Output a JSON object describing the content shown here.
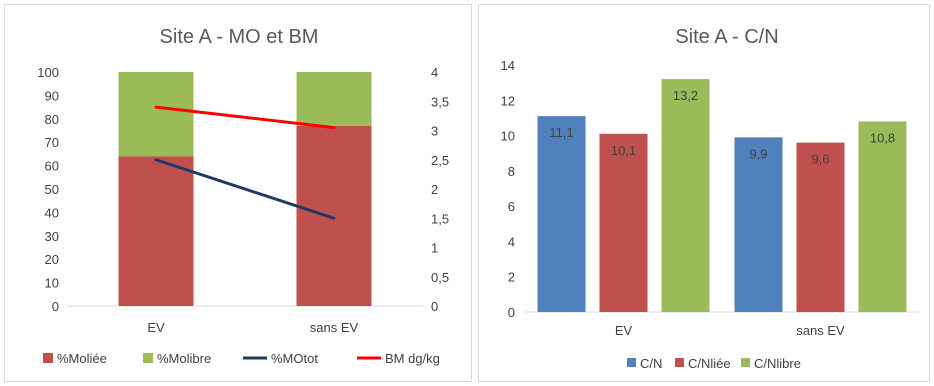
{
  "chart_data": [
    {
      "type": "bar",
      "subtype": "stacked bar + line (secondary axis)",
      "title": "Site A -  MO et BM",
      "categories": [
        "EV",
        "sans EV"
      ],
      "ylim": [
        0,
        100
      ],
      "yticks": [
        0,
        10,
        20,
        30,
        40,
        50,
        60,
        70,
        80,
        90,
        100
      ],
      "y2lim": [
        0,
        4
      ],
      "y2ticks": [
        "0",
        "0,5",
        "1",
        "1,5",
        "2",
        "2,5",
        "3",
        "3,5",
        "4"
      ],
      "grid": false,
      "legend_position": "bottom",
      "series": [
        {
          "name": "%Moliée",
          "kind": "bar",
          "axis": "primary",
          "color": "#c0504d",
          "values": [
            64,
            77
          ]
        },
        {
          "name": "%Molibre",
          "kind": "bar",
          "axis": "primary",
          "color": "#9bbb59",
          "values": [
            36,
            23
          ]
        },
        {
          "name": "%MOtot",
          "kind": "line",
          "axis": "primary",
          "color": "#1f3864",
          "values": [
            62.5,
            37.5
          ]
        },
        {
          "name": "BM dg/kg",
          "kind": "line",
          "axis": "secondary",
          "color": "#ff0000",
          "values": [
            3.4,
            3.05
          ]
        }
      ]
    },
    {
      "type": "bar",
      "title": "Site A - C/N",
      "categories": [
        "EV",
        "sans EV"
      ],
      "ylim": [
        0,
        14
      ],
      "yticks": [
        0,
        2,
        4,
        6,
        8,
        10,
        12,
        14
      ],
      "grid": false,
      "legend_position": "bottom",
      "series": [
        {
          "name": "C/N",
          "color": "#4f81bd",
          "values": [
            11.1,
            9.9
          ],
          "labels": [
            "11,1",
            "9,9"
          ]
        },
        {
          "name": "C/Nliée",
          "color": "#c0504d",
          "values": [
            10.1,
            9.6
          ],
          "labels": [
            "10,1",
            "9,6"
          ]
        },
        {
          "name": "C/Nlibre",
          "color": "#9bbb59",
          "values": [
            13.2,
            10.8
          ],
          "labels": [
            "13,2",
            "10,8"
          ]
        }
      ]
    }
  ]
}
